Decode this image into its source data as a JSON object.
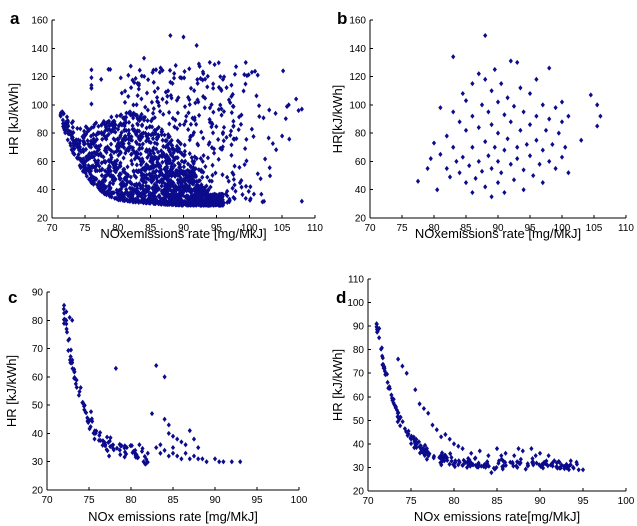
{
  "figure": {
    "marker_color": "#0b0b8c",
    "marker_shape": "diamond"
  },
  "chart_data": [
    {
      "type": "scatter",
      "label": "a",
      "xlabel": "NOxemissions rate [mg/MkJ]",
      "ylabel": "HR  [kJ/kWh]",
      "xlim": [
        70,
        110
      ],
      "ylim": [
        20,
        160
      ],
      "xticks": [
        70,
        75,
        80,
        85,
        90,
        95,
        100,
        105,
        110
      ],
      "yticks": [
        20,
        40,
        60,
        80,
        100,
        120,
        140,
        160
      ],
      "grid": false,
      "generated": {
        "envelope": [
          [
            71.3,
            90
          ],
          [
            72,
            80
          ],
          [
            73,
            68
          ],
          [
            74,
            58
          ],
          [
            75,
            51
          ],
          [
            76,
            45
          ],
          [
            77,
            41
          ],
          [
            78,
            37
          ],
          [
            80,
            33
          ],
          [
            83,
            31
          ],
          [
            86,
            30
          ],
          [
            90,
            29
          ],
          [
            96,
            29
          ]
        ],
        "lower_count": 1400,
        "upper_count": 480,
        "upper_xrange": [
          76,
          108
        ],
        "upper_yrange": [
          30,
          130
        ],
        "upper_center": 90,
        "upper_spread": 7
      },
      "points": [
        [
          88,
          149
        ],
        [
          90,
          148
        ],
        [
          84,
          133
        ],
        [
          94,
          130
        ],
        [
          98,
          127
        ],
        [
          108,
          97
        ],
        [
          107.5,
          96
        ],
        [
          106,
          100
        ],
        [
          104,
          94
        ],
        [
          105,
          78
        ],
        [
          92,
          142
        ],
        [
          96,
          118
        ]
      ]
    },
    {
      "type": "scatter",
      "label": "b",
      "xlabel": "NOxemissions rate [mg/MkJ]",
      "ylabel": "HR[kJ/kWh]",
      "xlim": [
        70,
        110
      ],
      "ylim": [
        20,
        160
      ],
      "xticks": [
        70,
        75,
        80,
        85,
        90,
        95,
        100,
        105,
        110
      ],
      "yticks": [
        20,
        40,
        60,
        80,
        100,
        120,
        140,
        160
      ],
      "grid": false,
      "points": [
        [
          77.5,
          46
        ],
        [
          79,
          55
        ],
        [
          79.5,
          62
        ],
        [
          80,
          73
        ],
        [
          80.5,
          40
        ],
        [
          81,
          98
        ],
        [
          81,
          65
        ],
        [
          82,
          55
        ],
        [
          82,
          78
        ],
        [
          82.5,
          49
        ],
        [
          83,
          134
        ],
        [
          83,
          95
        ],
        [
          83,
          70
        ],
        [
          83.5,
          60
        ],
        [
          84,
          88
        ],
        [
          84,
          52
        ],
        [
          84.5,
          108
        ],
        [
          84.5,
          63
        ],
        [
          85,
          45
        ],
        [
          85,
          82
        ],
        [
          85,
          103
        ],
        [
          85.5,
          57
        ],
        [
          86,
          115
        ],
        [
          86,
          70
        ],
        [
          86,
          38
        ],
        [
          86,
          92
        ],
        [
          86.5,
          48
        ],
        [
          87,
          122
        ],
        [
          87,
          60
        ],
        [
          87,
          84
        ],
        [
          87.5,
          100
        ],
        [
          87.5,
          53
        ],
        [
          88,
          149
        ],
        [
          88,
          118
        ],
        [
          88,
          74
        ],
        [
          88,
          42
        ],
        [
          88.5,
          95
        ],
        [
          88.5,
          64
        ],
        [
          89,
          110
        ],
        [
          89,
          55
        ],
        [
          89,
          86
        ],
        [
          89,
          35
        ],
        [
          89.5,
          125
        ],
        [
          89.5,
          70
        ],
        [
          90,
          102
        ],
        [
          90,
          60
        ],
        [
          90,
          80
        ],
        [
          90,
          45
        ],
        [
          90.5,
          115
        ],
        [
          90.5,
          52
        ],
        [
          91,
          93
        ],
        [
          91,
          68
        ],
        [
          91,
          38
        ],
        [
          91.5,
          105
        ],
        [
          91.5,
          76
        ],
        [
          92,
          131
        ],
        [
          92,
          58
        ],
        [
          92,
          88
        ],
        [
          92.5,
          47
        ],
        [
          92.5,
          99
        ],
        [
          93,
          130
        ],
        [
          93,
          70
        ],
        [
          93,
          62
        ],
        [
          93.5,
          112
        ],
        [
          93.5,
          82
        ],
        [
          94,
          54
        ],
        [
          94,
          95
        ],
        [
          94,
          40
        ],
        [
          94.5,
          72
        ],
        [
          95,
          108
        ],
        [
          95,
          64
        ],
        [
          95,
          86
        ],
        [
          95.5,
          50
        ],
        [
          96,
          118
        ],
        [
          96,
          75
        ],
        [
          96,
          92
        ],
        [
          96.5,
          58
        ],
        [
          97,
          100
        ],
        [
          97,
          68
        ],
        [
          97,
          45
        ],
        [
          97.5,
          82
        ],
        [
          98,
          126
        ],
        [
          98,
          60
        ],
        [
          98,
          90
        ],
        [
          98.5,
          72
        ],
        [
          99,
          55
        ],
        [
          99,
          98
        ],
        [
          99.5,
          80
        ],
        [
          100,
          63
        ],
        [
          100,
          88
        ],
        [
          100,
          102
        ],
        [
          100.5,
          70
        ],
        [
          101,
          92
        ],
        [
          104.5,
          107
        ],
        [
          105.5,
          85
        ],
        [
          105.5,
          100
        ],
        [
          106,
          92
        ],
        [
          103,
          75
        ],
        [
          101,
          52
        ]
      ]
    },
    {
      "type": "scatter",
      "label": "c",
      "xlabel": "NOx emissions rate [mg/MkJ]",
      "ylabel": "HR  [kJ/kWh]",
      "xlim": [
        70,
        100
      ],
      "ylim": [
        20,
        90
      ],
      "xticks": [
        70,
        75,
        80,
        85,
        90,
        95,
        100
      ],
      "yticks": [
        20,
        30,
        40,
        50,
        60,
        70,
        80,
        90
      ],
      "grid": false,
      "curve": {
        "function": "a*exp(-(x-x0)/tau)+c",
        "a": 52,
        "x0": 72,
        "tau": 2.2,
        "c": 31.5,
        "x_from": 72.0,
        "x_to": 82.0,
        "count": 110,
        "jitter": 1.5
      },
      "points": [
        [
          72,
          84
        ],
        [
          72.3,
          83
        ],
        [
          72.7,
          81
        ],
        [
          73,
          80
        ],
        [
          82,
          33
        ],
        [
          83,
          35
        ],
        [
          83.5,
          33
        ],
        [
          84,
          34
        ],
        [
          84.5,
          32
        ],
        [
          85,
          33
        ],
        [
          85.5,
          32
        ],
        [
          86,
          31
        ],
        [
          86.5,
          33
        ],
        [
          87,
          31
        ],
        [
          87.5,
          32
        ],
        [
          88,
          31
        ],
        [
          88.5,
          31
        ],
        [
          89,
          30
        ],
        [
          90,
          31
        ],
        [
          90.5,
          30
        ],
        [
          91,
          30
        ],
        [
          92,
          30
        ],
        [
          93,
          30
        ],
        [
          78.2,
          63
        ],
        [
          83,
          64
        ],
        [
          84,
          60
        ],
        [
          82.5,
          47
        ],
        [
          84,
          45
        ],
        [
          84.5,
          43
        ],
        [
          85,
          39
        ],
        [
          85.5,
          38
        ],
        [
          86,
          37
        ],
        [
          87,
          41
        ],
        [
          86.5,
          36
        ],
        [
          87.5,
          38
        ],
        [
          88,
          35
        ],
        [
          81,
          36
        ],
        [
          80.5,
          34
        ],
        [
          79.5,
          35
        ],
        [
          83.5,
          36
        ],
        [
          85,
          35
        ],
        [
          84.5,
          40
        ]
      ]
    },
    {
      "type": "scatter",
      "label": "d",
      "xlabel": "NOx emissions rate[mg/MkJ]",
      "ylabel": "HR  [kJ/kWh]",
      "xlim": [
        70,
        100
      ],
      "ylim": [
        20,
        110
      ],
      "xticks": [
        70,
        75,
        80,
        85,
        90,
        95,
        100
      ],
      "yticks": [
        20,
        30,
        40,
        50,
        60,
        70,
        80,
        90,
        100,
        110
      ],
      "grid": false,
      "curve": {
        "function": "a*exp(-(x-x0)/tau)+c",
        "a": 60,
        "x0": 71,
        "tau": 2.4,
        "c": 31,
        "x_from": 71.0,
        "x_to": 94.5,
        "count": 220,
        "jitter": 1.2
      },
      "points": [
        [
          71,
          91
        ],
        [
          71.3,
          89
        ],
        [
          73.5,
          76
        ],
        [
          74,
          73
        ],
        [
          74.5,
          70
        ],
        [
          75.5,
          63
        ],
        [
          76,
          57
        ],
        [
          76.5,
          55
        ],
        [
          77,
          53
        ],
        [
          77.5,
          48
        ],
        [
          78,
          46
        ],
        [
          78.5,
          43
        ],
        [
          79,
          44
        ],
        [
          79.5,
          42
        ],
        [
          80,
          40
        ],
        [
          80.5,
          39
        ],
        [
          81,
          38
        ],
        [
          82,
          36
        ],
        [
          83,
          37
        ],
        [
          84,
          35
        ],
        [
          85,
          38
        ],
        [
          86,
          36
        ],
        [
          87,
          35
        ],
        [
          88,
          37
        ],
        [
          89,
          38
        ],
        [
          90,
          36
        ],
        [
          91,
          35
        ],
        [
          85.5,
          35
        ],
        [
          87.5,
          38
        ],
        [
          89.5,
          35
        ],
        [
          94.5,
          29
        ],
        [
          95,
          29
        ]
      ]
    }
  ]
}
